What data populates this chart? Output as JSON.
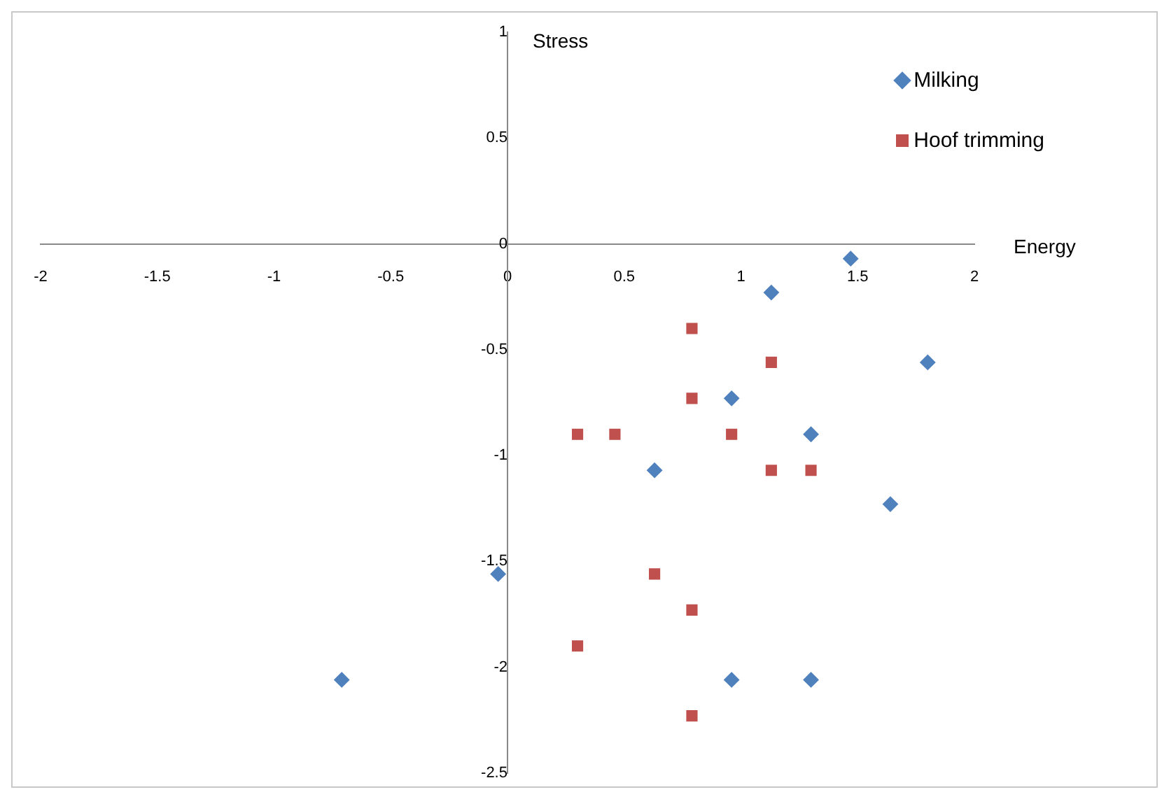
{
  "chart_data": {
    "type": "scatter",
    "xlabel": "Energy",
    "ylabel": "Stress",
    "xlim": [
      -2,
      2
    ],
    "xticks": [
      -2,
      -1.5,
      -1,
      -0.5,
      0,
      0.5,
      1,
      1.5,
      2
    ],
    "ylim": [
      -2.5,
      1
    ],
    "yticks": [
      -2.5,
      -2,
      -1.5,
      -1,
      -0.5,
      0,
      0.5,
      1
    ],
    "grid": false,
    "legend": "top right",
    "series": [
      {
        "name": "Milking",
        "color": "#4f81bd",
        "marker": "diamond",
        "x": [
          1.47,
          1.13,
          1.8,
          0.96,
          1.3,
          0.63,
          1.64,
          -0.04,
          -0.71,
          0.96,
          1.3
        ],
        "values": [
          -0.07,
          -0.23,
          -0.56,
          -0.73,
          -0.9,
          -1.07,
          -1.23,
          -1.56,
          -2.06,
          -2.06,
          -2.06
        ]
      },
      {
        "name": "Hoof trimming",
        "color": "#c0504d",
        "marker": "square",
        "x": [
          0.79,
          1.13,
          0.79,
          0.3,
          0.46,
          0.96,
          1.13,
          1.3,
          0.63,
          0.79,
          0.3,
          0.79
        ],
        "values": [
          -0.4,
          -0.56,
          -0.73,
          -0.9,
          -0.9,
          -0.9,
          -1.07,
          -1.07,
          -1.56,
          -1.73,
          -1.9,
          -2.23
        ]
      }
    ]
  }
}
